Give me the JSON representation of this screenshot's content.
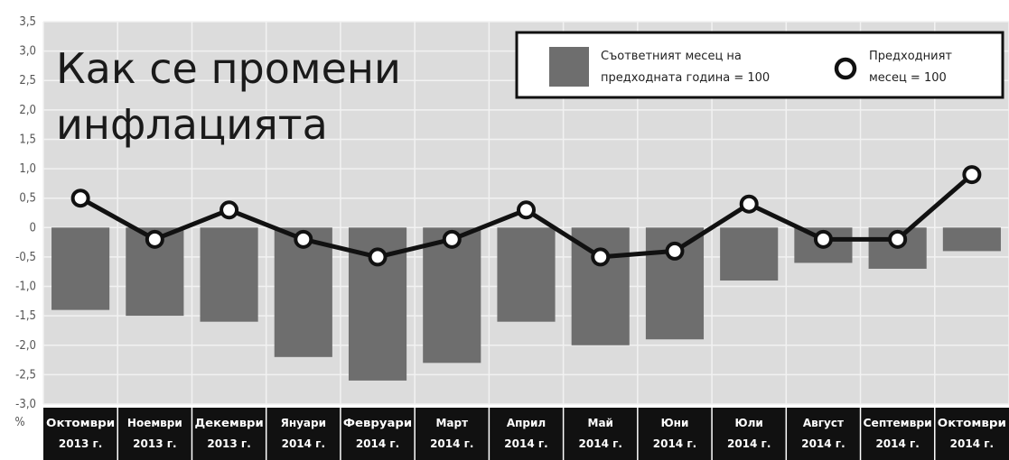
{
  "chart_data": {
    "type": "bar",
    "title_lines": [
      "Как се промени",
      "инфлацията"
    ],
    "ylabel": "%",
    "ylim": [
      -3.0,
      3.5
    ],
    "yticks": [
      "3,5",
      "3,0",
      "2,5",
      "2,0",
      "1,5",
      "1,0",
      "0,5",
      "0",
      "-0,5",
      "-1,0",
      "-1,5",
      "-2,0",
      "-2,5",
      "-3,0"
    ],
    "categories": [
      [
        "Октомври",
        "2013 г."
      ],
      [
        "Ноември",
        "2013 г."
      ],
      [
        "Декември",
        "2013 г."
      ],
      [
        "Януари",
        "2014 г."
      ],
      [
        "Февруари",
        "2014 г."
      ],
      [
        "Март",
        "2014 г."
      ],
      [
        "Април",
        "2014 г."
      ],
      [
        "Май",
        "2014 г."
      ],
      [
        "Юни",
        "2014 г."
      ],
      [
        "Юли",
        "2014 г."
      ],
      [
        "Август",
        "2014 г."
      ],
      [
        "Септември",
        "2014 г."
      ],
      [
        "Октомври",
        "2014 г."
      ]
    ],
    "series": [
      {
        "name": "Съответният месец на предходната година = 100",
        "kind": "bar",
        "color": "#6e6e6e",
        "values": [
          -1.4,
          -1.5,
          -1.6,
          -2.2,
          -2.6,
          -2.3,
          -1.6,
          -2.0,
          -1.9,
          -0.9,
          -0.6,
          -0.7,
          -0.4
        ]
      },
      {
        "name": "Предходният месец = 100",
        "kind": "line",
        "color": "#111111",
        "values": [
          0.5,
          -0.2,
          0.3,
          -0.2,
          -0.5,
          -0.2,
          0.3,
          -0.5,
          -0.4,
          0.4,
          -0.2,
          -0.2,
          0.9
        ]
      }
    ],
    "legend": {
      "bar_label_lines": [
        "Съответният месец на",
        "предходната година = 100"
      ],
      "line_label_lines": [
        "Предходният",
        "месец = 100"
      ],
      "placement": "top-right"
    },
    "grid": true,
    "background": "#dcdcdc",
    "gridline_color": "#f2f2f2",
    "category_band_color": "#111111"
  }
}
